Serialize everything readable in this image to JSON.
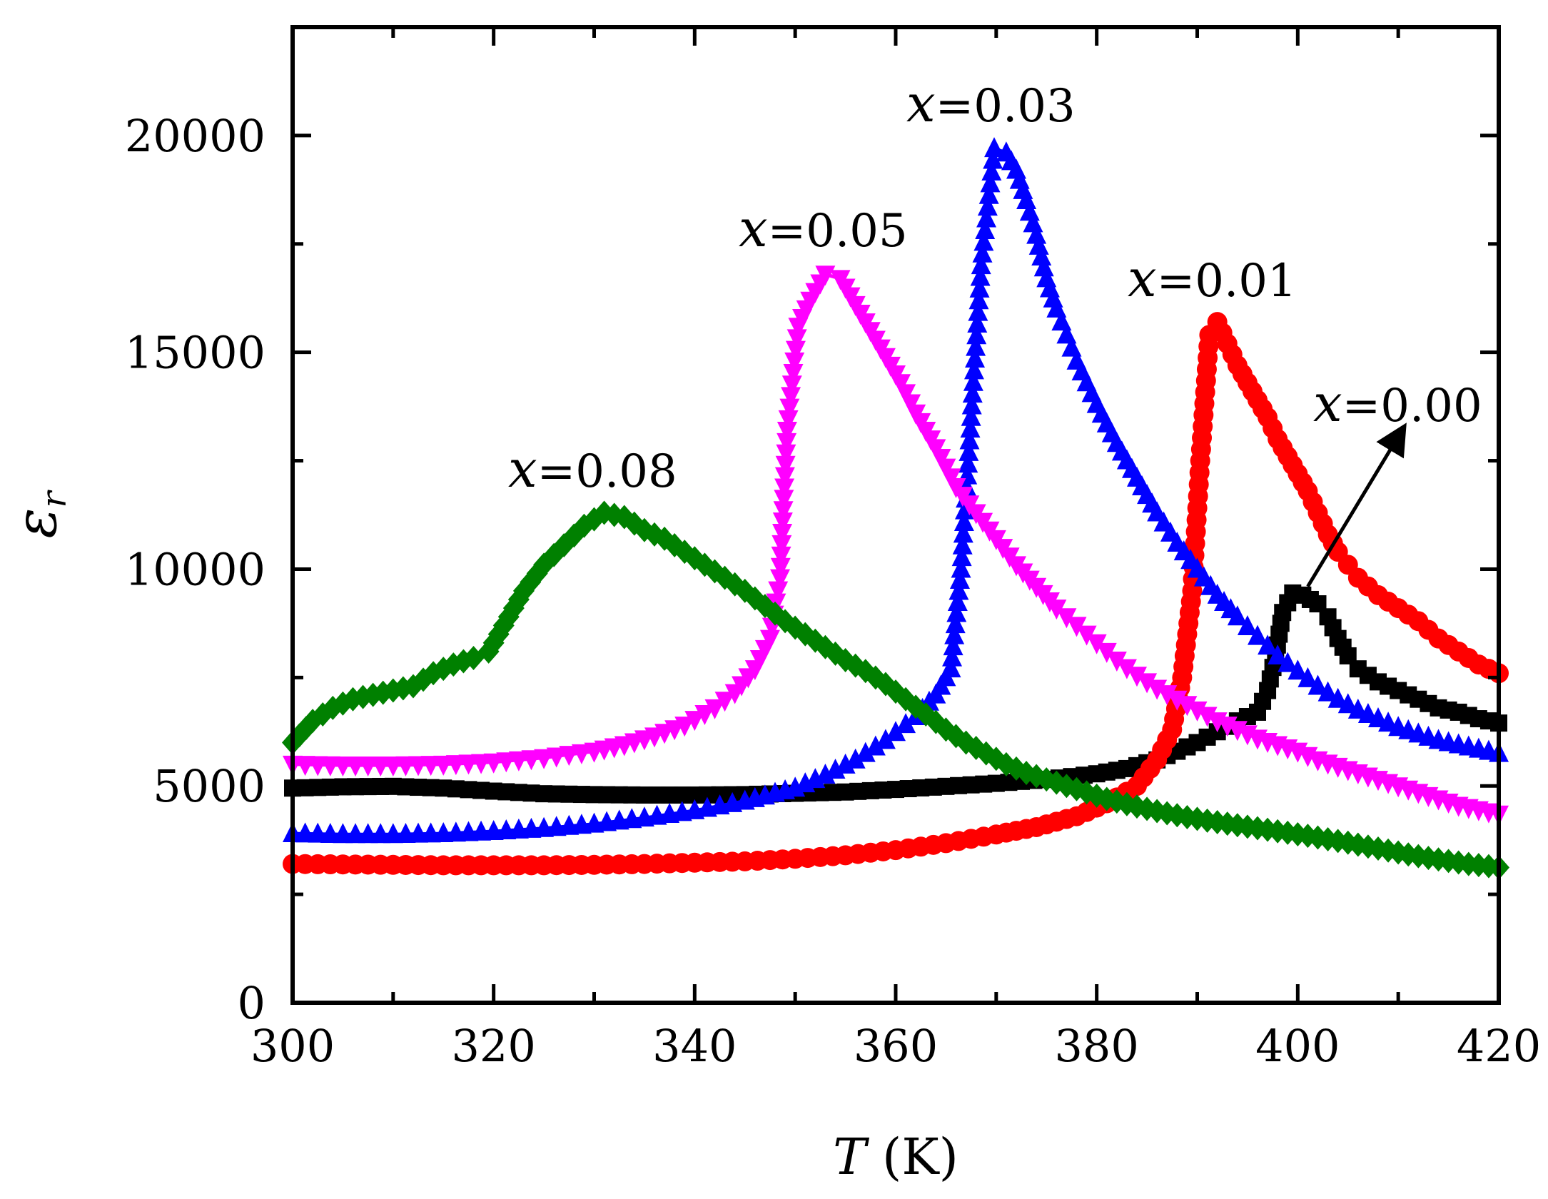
{
  "chart_data": {
    "type": "scatter",
    "xlabel": {
      "var": "T",
      "unit": " (K)"
    },
    "ylabel": {
      "var": "ε",
      "sub": "r"
    },
    "xlim": [
      300,
      420
    ],
    "ylim": [
      0,
      22500
    ],
    "xticks": [
      300,
      320,
      340,
      360,
      380,
      400,
      420
    ],
    "yticks": [
      0,
      5000,
      10000,
      15000,
      20000
    ],
    "yticks_minor": [
      2500,
      7500,
      12500,
      17500
    ],
    "xticks_minor": [
      310,
      330,
      350,
      370,
      390,
      410
    ],
    "legend": "inline labels",
    "series": [
      {
        "name": "x=0.00",
        "label_var": "x",
        "label_val": "=0.00",
        "color": "#000000",
        "marker": "square",
        "points": [
          [
            300,
            4950
          ],
          [
            305,
            4980
          ],
          [
            310,
            4990
          ],
          [
            315,
            4950
          ],
          [
            320,
            4880
          ],
          [
            325,
            4820
          ],
          [
            330,
            4800
          ],
          [
            335,
            4790
          ],
          [
            340,
            4790
          ],
          [
            345,
            4800
          ],
          [
            350,
            4830
          ],
          [
            355,
            4860
          ],
          [
            360,
            4920
          ],
          [
            365,
            4990
          ],
          [
            370,
            5060
          ],
          [
            375,
            5150
          ],
          [
            380,
            5280
          ],
          [
            383,
            5400
          ],
          [
            386,
            5600
          ],
          [
            388,
            5800
          ],
          [
            390,
            6000
          ],
          [
            392,
            6250
          ],
          [
            394,
            6500
          ],
          [
            396,
            6700
          ],
          [
            397,
            7200
          ],
          [
            397.8,
            8000
          ],
          [
            398.5,
            9000
          ],
          [
            399.5,
            9450
          ],
          [
            400.5,
            9400
          ],
          [
            402,
            9200
          ],
          [
            403,
            8900
          ],
          [
            404,
            8400
          ],
          [
            405,
            8000
          ],
          [
            406,
            7700
          ],
          [
            408,
            7400
          ],
          [
            410,
            7200
          ],
          [
            412,
            7000
          ],
          [
            414,
            6800
          ],
          [
            416,
            6700
          ],
          [
            418,
            6550
          ],
          [
            420,
            6450
          ]
        ]
      },
      {
        "name": "x=0.01",
        "label_var": "x",
        "label_val": "=0.01",
        "color": "#ff0000",
        "marker": "circle",
        "points": [
          [
            300,
            3200
          ],
          [
            305,
            3190
          ],
          [
            310,
            3180
          ],
          [
            315,
            3170
          ],
          [
            320,
            3170
          ],
          [
            325,
            3170
          ],
          [
            330,
            3180
          ],
          [
            335,
            3200
          ],
          [
            340,
            3230
          ],
          [
            345,
            3260
          ],
          [
            350,
            3320
          ],
          [
            355,
            3400
          ],
          [
            360,
            3520
          ],
          [
            365,
            3680
          ],
          [
            370,
            3880
          ],
          [
            374,
            4050
          ],
          [
            378,
            4300
          ],
          [
            381,
            4600
          ],
          [
            384,
            5000
          ],
          [
            386,
            5600
          ],
          [
            387.5,
            6300
          ],
          [
            388.5,
            7500
          ],
          [
            389.5,
            9500
          ],
          [
            390.3,
            12500
          ],
          [
            391.2,
            15400
          ],
          [
            392,
            15700
          ],
          [
            393,
            15200
          ],
          [
            394,
            14700
          ],
          [
            395,
            14300
          ],
          [
            396,
            13900
          ],
          [
            397,
            13500
          ],
          [
            398,
            13000
          ],
          [
            399,
            12600
          ],
          [
            400,
            12200
          ],
          [
            401,
            11800
          ],
          [
            402,
            11300
          ],
          [
            403,
            10800
          ],
          [
            404,
            10400
          ],
          [
            405,
            10100
          ],
          [
            406,
            9800
          ],
          [
            408,
            9400
          ],
          [
            410,
            9100
          ],
          [
            412,
            8800
          ],
          [
            414,
            8400
          ],
          [
            416,
            8100
          ],
          [
            418,
            7800
          ],
          [
            420,
            7600
          ]
        ]
      },
      {
        "name": "x=0.03",
        "label_var": "x",
        "label_val": "=0.03",
        "color": "#0000ff",
        "marker": "triangle-up",
        "points": [
          [
            300,
            3900
          ],
          [
            305,
            3880
          ],
          [
            310,
            3880
          ],
          [
            315,
            3900
          ],
          [
            320,
            3950
          ],
          [
            325,
            4020
          ],
          [
            330,
            4120
          ],
          [
            335,
            4260
          ],
          [
            340,
            4430
          ],
          [
            345,
            4650
          ],
          [
            350,
            4950
          ],
          [
            353,
            5250
          ],
          [
            356,
            5600
          ],
          [
            359,
            6050
          ],
          [
            362,
            6600
          ],
          [
            364,
            7100
          ],
          [
            365.5,
            7700
          ],
          [
            366.5,
            10000
          ],
          [
            367.5,
            13500
          ],
          [
            368.5,
            17000
          ],
          [
            369.8,
            19700
          ],
          [
            371,
            19600
          ],
          [
            372,
            19200
          ],
          [
            373,
            18500
          ],
          [
            374,
            17700
          ],
          [
            375,
            16700
          ],
          [
            376,
            16000
          ],
          [
            377,
            15400
          ],
          [
            378,
            14800
          ],
          [
            379,
            14300
          ],
          [
            380,
            13800
          ],
          [
            382,
            12900
          ],
          [
            384,
            12100
          ],
          [
            386,
            11300
          ],
          [
            388,
            10600
          ],
          [
            390,
            10000
          ],
          [
            392,
            9400
          ],
          [
            394,
            8900
          ],
          [
            396,
            8450
          ],
          [
            398,
            8000
          ],
          [
            400,
            7650
          ],
          [
            402,
            7300
          ],
          [
            404,
            7000
          ],
          [
            406,
            6750
          ],
          [
            408,
            6550
          ],
          [
            410,
            6350
          ],
          [
            412,
            6200
          ],
          [
            414,
            6050
          ],
          [
            416,
            5950
          ],
          [
            418,
            5850
          ],
          [
            420,
            5750
          ]
        ]
      },
      {
        "name": "x=0.05",
        "label_var": "x",
        "label_val": "=0.05",
        "color": "#ff00ff",
        "marker": "triangle-down",
        "points": [
          [
            300,
            5500
          ],
          [
            305,
            5480
          ],
          [
            310,
            5480
          ],
          [
            315,
            5500
          ],
          [
            320,
            5550
          ],
          [
            325,
            5650
          ],
          [
            330,
            5800
          ],
          [
            333,
            5950
          ],
          [
            336,
            6150
          ],
          [
            339,
            6400
          ],
          [
            342,
            6800
          ],
          [
            344,
            7150
          ],
          [
            346,
            7700
          ],
          [
            347.5,
            8400
          ],
          [
            348.5,
            9800
          ],
          [
            349.2,
            13200
          ],
          [
            350.3,
            15600
          ],
          [
            351.5,
            16200
          ],
          [
            353,
            16800
          ],
          [
            354.5,
            16700
          ],
          [
            356,
            16100
          ],
          [
            357.5,
            15500
          ],
          [
            359,
            14900
          ],
          [
            360.5,
            14300
          ],
          [
            362,
            13600
          ],
          [
            364,
            12800
          ],
          [
            366,
            11900
          ],
          [
            368,
            11300
          ],
          [
            370,
            10700
          ],
          [
            372,
            10100
          ],
          [
            374,
            9600
          ],
          [
            376,
            9100
          ],
          [
            378,
            8700
          ],
          [
            380,
            8300
          ],
          [
            382,
            7900
          ],
          [
            384,
            7550
          ],
          [
            386,
            7250
          ],
          [
            388,
            7000
          ],
          [
            390,
            6750
          ],
          [
            392,
            6500
          ],
          [
            394,
            6300
          ],
          [
            396,
            6100
          ],
          [
            398,
            5950
          ],
          [
            400,
            5800
          ],
          [
            402,
            5600
          ],
          [
            404,
            5450
          ],
          [
            406,
            5300
          ],
          [
            408,
            5150
          ],
          [
            410,
            5000
          ],
          [
            412,
            4850
          ],
          [
            414,
            4700
          ],
          [
            416,
            4550
          ],
          [
            418,
            4450
          ],
          [
            420,
            4350
          ]
        ]
      },
      {
        "name": "x=0.08",
        "label_var": "x",
        "label_val": "=0.08",
        "color": "#008000",
        "marker": "diamond",
        "points": [
          [
            300,
            6000
          ],
          [
            302,
            6500
          ],
          [
            304,
            6800
          ],
          [
            306,
            7000
          ],
          [
            308,
            7100
          ],
          [
            310,
            7200
          ],
          [
            312,
            7300
          ],
          [
            314,
            7600
          ],
          [
            316,
            7800
          ],
          [
            318,
            7950
          ],
          [
            319.5,
            8100
          ],
          [
            321,
            8700
          ],
          [
            323,
            9500
          ],
          [
            325,
            10100
          ],
          [
            327,
            10550
          ],
          [
            329,
            11000
          ],
          [
            331,
            11300
          ],
          [
            333,
            11200
          ],
          [
            335,
            10900
          ],
          [
            337,
            10700
          ],
          [
            339,
            10400
          ],
          [
            341,
            10100
          ],
          [
            343,
            9800
          ],
          [
            345,
            9500
          ],
          [
            347,
            9150
          ],
          [
            349,
            8800
          ],
          [
            351,
            8500
          ],
          [
            353,
            8200
          ],
          [
            355,
            7900
          ],
          [
            357,
            7650
          ],
          [
            359,
            7350
          ],
          [
            361,
            7000
          ],
          [
            363,
            6650
          ],
          [
            365,
            6300
          ],
          [
            367,
            6000
          ],
          [
            369,
            5750
          ],
          [
            371,
            5500
          ],
          [
            373,
            5300
          ],
          [
            375,
            5150
          ],
          [
            377,
            5000
          ],
          [
            379,
            4850
          ],
          [
            381,
            4700
          ],
          [
            383,
            4580
          ],
          [
            385,
            4470
          ],
          [
            387,
            4370
          ],
          [
            389,
            4280
          ],
          [
            391,
            4200
          ],
          [
            393,
            4130
          ],
          [
            395,
            4060
          ],
          [
            397,
            3990
          ],
          [
            399,
            3920
          ],
          [
            401,
            3850
          ],
          [
            403,
            3770
          ],
          [
            405,
            3690
          ],
          [
            407,
            3600
          ],
          [
            409,
            3510
          ],
          [
            411,
            3420
          ],
          [
            413,
            3340
          ],
          [
            415,
            3270
          ],
          [
            417,
            3200
          ],
          [
            419,
            3150
          ],
          [
            420,
            3120
          ]
        ]
      }
    ],
    "annotations": [
      {
        "series": "x=0.00",
        "arrow_from": [
          401,
          9600
        ],
        "arrow_to": [
          410.5,
          13250
        ]
      }
    ]
  }
}
